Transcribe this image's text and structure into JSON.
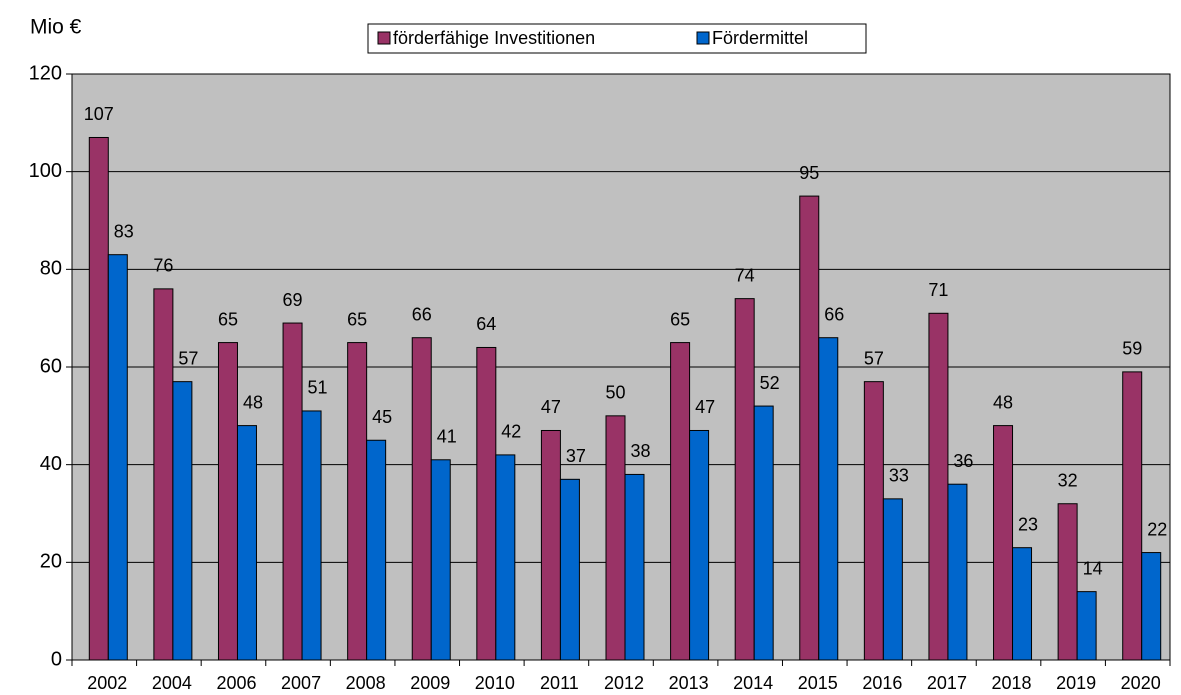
{
  "chart_data": {
    "type": "bar",
    "y_label": "Mio €",
    "categories": [
      "2002",
      "2004",
      "2006",
      "2007",
      "2008",
      "2009",
      "2010",
      "2011",
      "2012",
      "2013",
      "2014",
      "2015",
      "2016",
      "2017",
      "2018",
      "2019",
      "2020"
    ],
    "series": [
      {
        "name": "förderfähige Investitionen",
        "color": "#993366",
        "values": [
          107,
          76,
          65,
          69,
          65,
          66,
          64,
          47,
          50,
          65,
          74,
          95,
          57,
          71,
          48,
          32,
          59
        ]
      },
      {
        "name": "Fördermittel",
        "color": "#0066cc",
        "values": [
          83,
          57,
          48,
          51,
          45,
          41,
          42,
          37,
          38,
          47,
          52,
          66,
          33,
          36,
          23,
          14,
          22
        ]
      }
    ],
    "ylim": [
      0,
      120
    ],
    "yticks": [
      0,
      20,
      40,
      60,
      80,
      100,
      120
    ],
    "grid": true,
    "legend": "top"
  }
}
